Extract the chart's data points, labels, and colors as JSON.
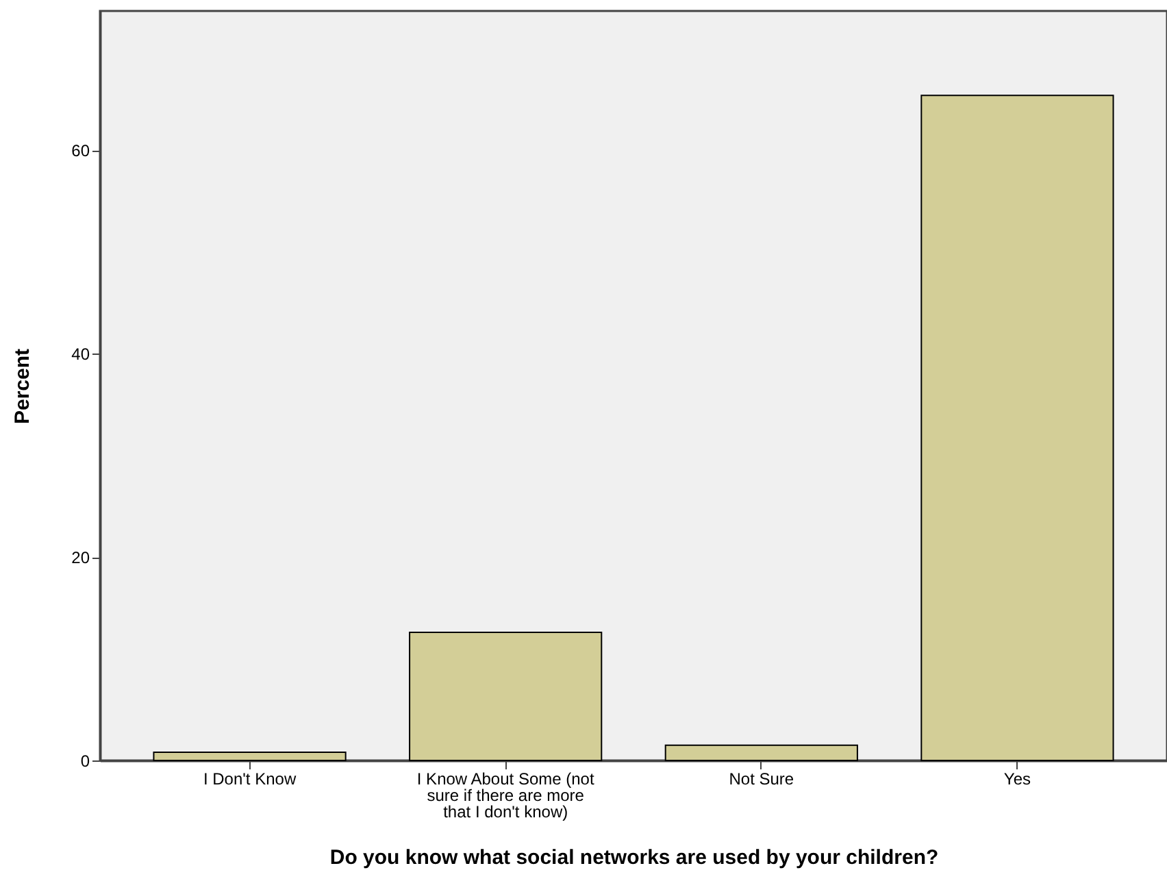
{
  "chart_data": {
    "type": "bar",
    "xlabel": "Do you know what social networks are used by your children?",
    "ylabel": "Percent",
    "categories": [
      "I Don't Know",
      "I Know About Some (not sure if there are more that I don't know)",
      "Not Sure",
      "Yes"
    ],
    "values": [
      0.8,
      12.6,
      1.5,
      65.4
    ],
    "color": "#d3ce97",
    "ylim": [
      0,
      73.7
    ],
    "yticks": [
      0,
      20,
      40,
      60
    ],
    "grid": false
  }
}
